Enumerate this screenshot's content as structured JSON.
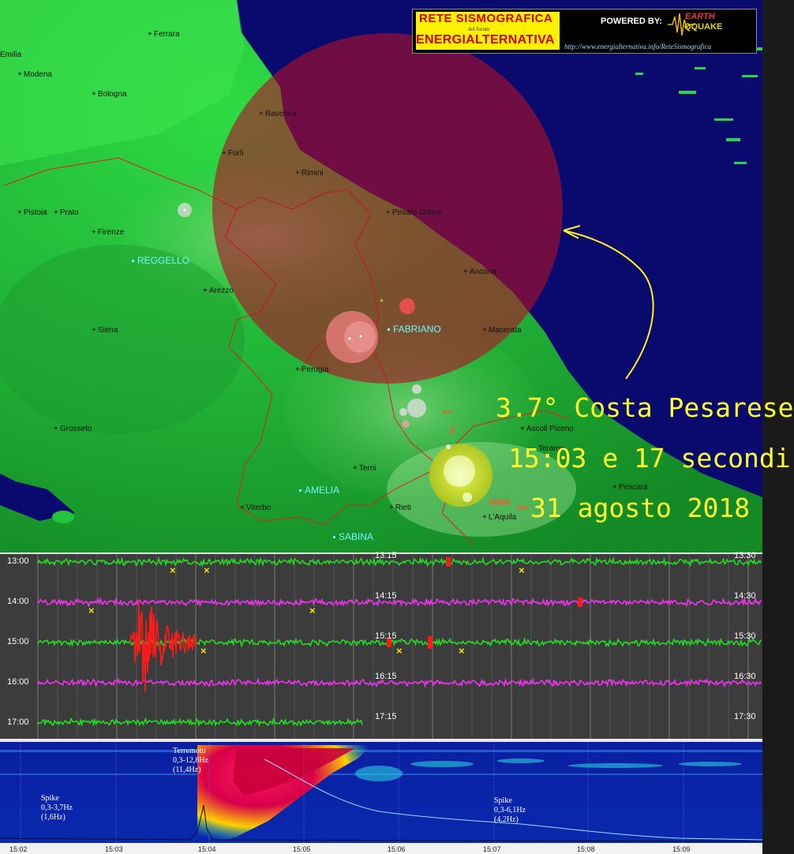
{
  "logo": {
    "title_line1": "RETE SISMOGRAFICA",
    "title_line2": "del forum",
    "title_line3": "ENERGIALTERNATIVA",
    "powered_by": "POWERED BY:",
    "brand_top": "EARTH",
    "brand_bottom": "QQUAKE",
    "url": "http://www.energialternativa.info/ReteSismografica"
  },
  "map": {
    "cities": [
      "Ferrara",
      "Emilia",
      "Modena",
      "Bologna",
      "Ravenna",
      "Forlì",
      "Rimini",
      "Pistoia",
      "Prato",
      "Firenze",
      "Pesaro Urbino",
      "Ancona",
      "Arezzo",
      "Siena",
      "Macerata",
      "Perugia",
      "Grosseto",
      "Ascoli Piceno",
      "Teramo",
      "Terni",
      "Pescara",
      "Viterbo",
      "Rieti",
      "L'Aquila"
    ],
    "stations": [
      "REGGELLO",
      "FABRIANO",
      "AMELIA",
      "SABINA"
    ],
    "annotation": {
      "magnitude_line": "3.7° Costa Pesarese",
      "time_line": "15:03 e 17 secondi",
      "date_line": "31 agosto 2018"
    },
    "colors": {
      "sea": "#0a0a6e",
      "land": "#22c43a",
      "epicenter": "#b01028",
      "arrow": "#ffee22"
    }
  },
  "seismogram": {
    "left_labels": [
      "13:00",
      "14:00",
      "15:00",
      "16:00",
      "17:00"
    ],
    "mid_labels": [
      "13:15",
      "14:15",
      "15:15",
      "16:15",
      "17:15"
    ],
    "right_labels": [
      "13:30",
      "14:30",
      "15:30",
      "16:30",
      "17:30"
    ],
    "trace_colors": [
      "#22dd22",
      "#ee33ee",
      "#22dd22",
      "#ee33ee",
      "#22dd22"
    ],
    "event_color": "#ff1a1a",
    "marker": "×"
  },
  "spectrogram": {
    "notes": [
      {
        "text": "Spike\n0,3-3,7Hz\n(1,6Hz)"
      },
      {
        "text": "Terremoto\n0,3-12,8Hz\n(11,4Hz)"
      },
      {
        "text": "Spike\n0,3-6,1Hz\n(4,2Hz)"
      }
    ],
    "time_ticks": [
      "15:02",
      "15:03",
      "15:04",
      "15:05",
      "15:06",
      "15:07",
      "15:08",
      "15:09"
    ]
  }
}
